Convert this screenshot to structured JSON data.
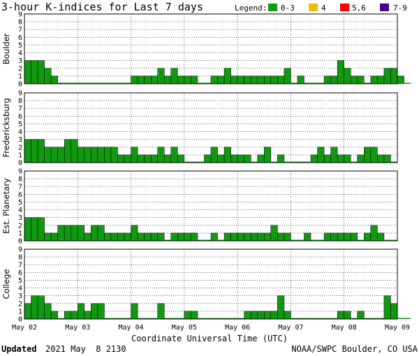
{
  "title": "3-hour K-indices for Last 7 days",
  "legend": {
    "label": "Legend:",
    "items": [
      {
        "label": "0-3",
        "color": "#119911"
      },
      {
        "label": "4",
        "color": "#e8c000"
      },
      {
        "label": "5,6",
        "color": "#ff0000"
      },
      {
        "label": "7-9",
        "color": "#4b0082"
      }
    ]
  },
  "xlabel": "Coordinate Universal Time (UTC)",
  "x_ticks": [
    "May 02",
    "May 03",
    "May 04",
    "May 05",
    "May 06",
    "May 07",
    "May 08",
    "May 09"
  ],
  "footer": {
    "updated_label": "Updated",
    "updated_value": "2021 May  8 2130",
    "source": "NOAA/SWPC Boulder, CO USA"
  },
  "chart_data": {
    "type": "bar",
    "ylim": [
      0,
      9
    ],
    "y_ticks": [
      "0",
      "1",
      "2",
      "3",
      "4",
      "5",
      "6",
      "7",
      "8",
      "9"
    ],
    "grid": true,
    "bar_color": "#119911",
    "panels": [
      {
        "name": "Boulder",
        "values": [
          3,
          3,
          3,
          2,
          1,
          0,
          0,
          0,
          0,
          0,
          0,
          0,
          0,
          0,
          0,
          0,
          1,
          1,
          1,
          1,
          2,
          1,
          2,
          1,
          1,
          1,
          0,
          0,
          1,
          1,
          2,
          1,
          1,
          1,
          1,
          1,
          1,
          1,
          1,
          2,
          0,
          1,
          0,
          0,
          0,
          1,
          1,
          3,
          2,
          1,
          1,
          0,
          1,
          1,
          2,
          2,
          1,
          0
        ]
      },
      {
        "name": "Fredericksburg",
        "values": [
          3,
          3,
          3,
          2,
          2,
          2,
          3,
          3,
          2,
          2,
          2,
          2,
          2,
          2,
          1,
          1,
          2,
          1,
          1,
          1,
          2,
          1,
          2,
          1,
          0,
          0,
          0,
          1,
          2,
          1,
          2,
          1,
          1,
          1,
          0,
          1,
          2,
          0,
          1,
          0,
          0,
          0,
          0,
          1,
          2,
          1,
          2,
          1,
          1,
          0,
          1,
          2,
          2,
          1,
          1,
          0
        ]
      },
      {
        "name": "Est. Planetary",
        "values": [
          3,
          3,
          3,
          1,
          1,
          2,
          2,
          2,
          2,
          1,
          2,
          2,
          1,
          1,
          1,
          1,
          2,
          1,
          1,
          1,
          1,
          0,
          1,
          1,
          1,
          1,
          0,
          0,
          1,
          0,
          1,
          1,
          1,
          1,
          1,
          1,
          1,
          2,
          1,
          1,
          0,
          0,
          1,
          0,
          0,
          1,
          1,
          1,
          1,
          1,
          0,
          1,
          2,
          1,
          0,
          0
        ]
      },
      {
        "name": "College",
        "values": [
          2,
          3,
          3,
          2,
          1,
          0,
          1,
          1,
          2,
          1,
          2,
          2,
          0,
          0,
          0,
          0,
          2,
          0,
          0,
          0,
          2,
          0,
          0,
          0,
          1,
          1,
          0,
          0,
          0,
          0,
          0,
          0,
          0,
          1,
          1,
          1,
          1,
          1,
          3,
          1,
          0,
          0,
          0,
          0,
          0,
          0,
          0,
          1,
          1,
          0,
          1,
          0,
          0,
          0,
          3,
          2,
          0,
          0
        ]
      }
    ]
  }
}
